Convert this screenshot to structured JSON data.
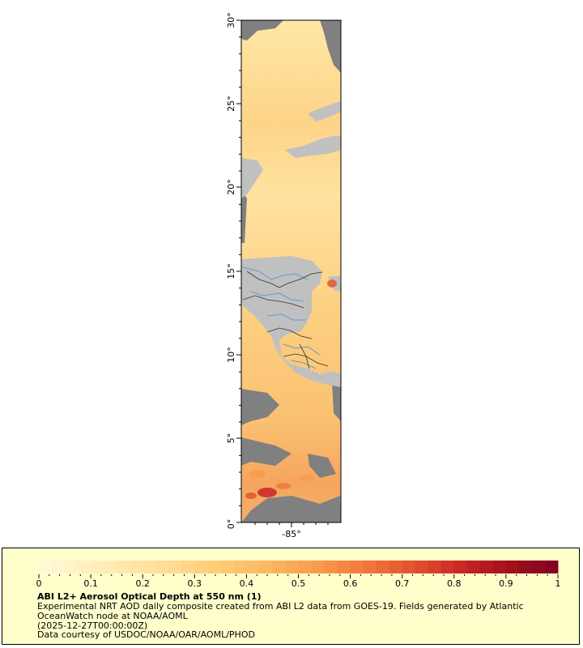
{
  "map": {
    "lat_ticks": [
      "0°",
      "5°",
      "10°",
      "15°",
      "20°",
      "25°",
      "30°"
    ],
    "lon_ticks": [
      "-85°"
    ],
    "colors": {
      "land": "#c0c0c0",
      "nodata": "#808080",
      "rivers": "#6699cc",
      "borders": "#333333"
    }
  },
  "legend": {
    "title": "ABI L2+ Aerosol Optical Depth at 550 nm (1)",
    "description": "Experimental NRT AOD daily composite created from ABI L2 data from GOES-19. Fields generated by Atlantic OceanWatch node at NOAA/AOML",
    "time": "(2025-12-27T00:00:00Z)",
    "credit": "Data courtesy of USDOC/NOAA/OAR/AOML/PHOD",
    "ticks": [
      "0",
      "0.1",
      "0.2",
      "0.3",
      "0.4",
      "0.5",
      "0.6",
      "0.7",
      "0.8",
      "0.9",
      "1"
    ],
    "range": [
      0,
      1
    ],
    "colors": [
      "#fff8d8",
      "#fff0c0",
      "#ffe6a6",
      "#ffd98c",
      "#fdc972",
      "#fbb45e",
      "#f9974a",
      "#f0753c",
      "#e0502e",
      "#c82424",
      "#a0101c",
      "#800020"
    ]
  }
}
